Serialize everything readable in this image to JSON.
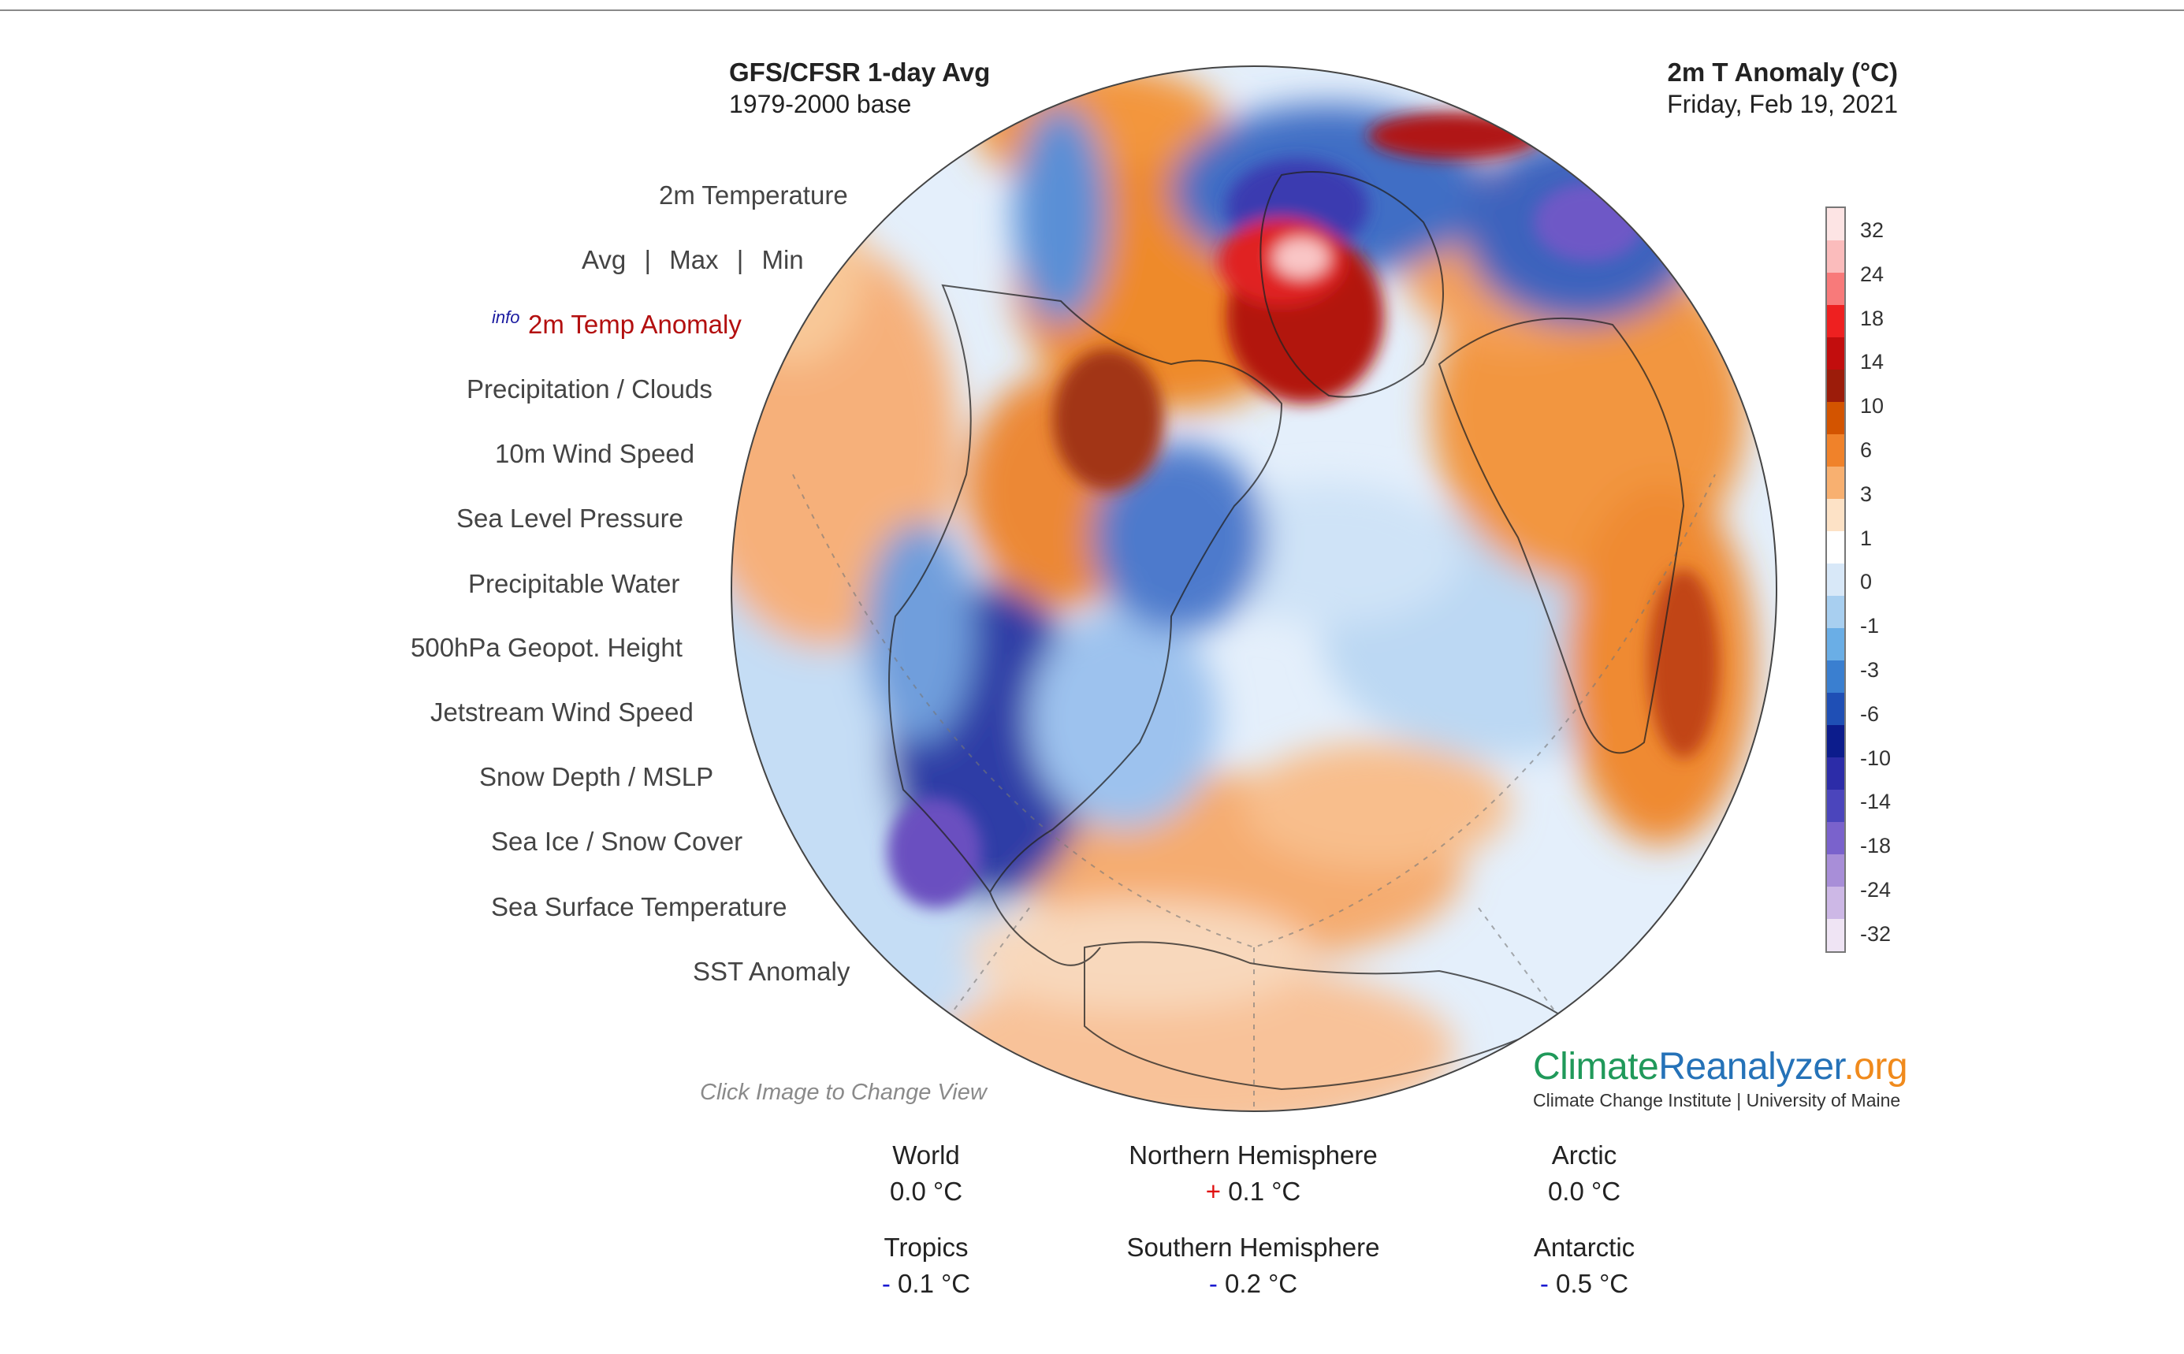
{
  "header": {
    "model_title": "GFS/CFSR 1-day Avg",
    "baseline": "1979-2000 base",
    "variable_title": "2m T Anomaly (°C)",
    "date": "Friday, Feb 19, 2021"
  },
  "menu": {
    "items": [
      {
        "label": "2m Temperature"
      },
      {
        "label": "Avg",
        "sub": [
          "Avg",
          "Max",
          "Min"
        ]
      },
      {
        "label": "2m Temp Anomaly",
        "active": true,
        "info": "info"
      },
      {
        "label": "Precipitation / Clouds"
      },
      {
        "label": "10m Wind Speed"
      },
      {
        "label": "Sea Level Pressure"
      },
      {
        "label": "Precipitable Water"
      },
      {
        "label": "500hPa Geopot. Height"
      },
      {
        "label": "Jetstream Wind Speed"
      },
      {
        "label": "Snow Depth / MSLP"
      },
      {
        "label": "Sea Ice / Snow Cover"
      },
      {
        "label": "Sea Surface Temperature"
      },
      {
        "label": "SST Anomaly"
      }
    ],
    "separator": "|",
    "avg": "Avg",
    "max": "Max",
    "min": "Min",
    "info": "info"
  },
  "colorbar": {
    "labels": [
      "32",
      "24",
      "18",
      "14",
      "10",
      "6",
      "3",
      "1",
      "0",
      "-1",
      "-3",
      "-6",
      "-10",
      "-14",
      "-18",
      "-24",
      "-32"
    ],
    "colors": [
      "#fde4e4",
      "#fbbcbc",
      "#f87a7a",
      "#ee2020",
      "#c20d0d",
      "#9c1c0a",
      "#d35400",
      "#f0822a",
      "#f8b070",
      "#fde2c6",
      "#ffffff",
      "#d8e8f8",
      "#a8cff0",
      "#6aaee6",
      "#3a7fd0",
      "#1f4fb5",
      "#0c1c8c",
      "#2c2ca8",
      "#4b45bc",
      "#7a62cc",
      "#a88ed8",
      "#cdb8e6",
      "#efe4f4"
    ]
  },
  "hint": "Click Image to Change View",
  "logo": {
    "part1": "Climate",
    "part2": "Reanalyzer",
    "part3": ".org",
    "subtitle": "Climate Change Institute | University of Maine"
  },
  "stats": {
    "world": {
      "name": "World",
      "sign": "",
      "value": "0.0 °C"
    },
    "nh": {
      "name": "Northern Hemisphere",
      "sign": "+",
      "value": "0.1 °C"
    },
    "arctic": {
      "name": "Arctic",
      "sign": "",
      "value": "0.0 °C"
    },
    "tropics": {
      "name": "Tropics",
      "sign": "-",
      "value": "0.1 °C"
    },
    "sh": {
      "name": "Southern Hemisphere",
      "sign": "-",
      "value": "0.2 °C"
    },
    "antarctic": {
      "name": "Antarctic",
      "sign": "-",
      "value": "0.5 °C"
    }
  }
}
